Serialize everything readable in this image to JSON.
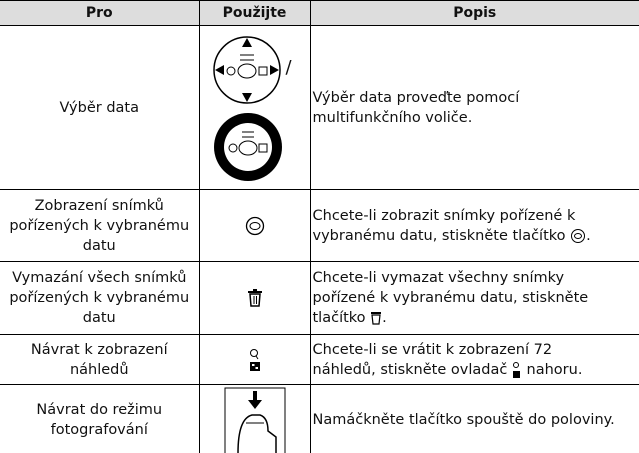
{
  "table": {
    "header": [
      "Pro",
      "Použijte",
      "Popis"
    ],
    "rows": [
      {
        "pro": "Výběr data",
        "separator": "/",
        "desc": [
          "Výběr data proveďte pomocí multifunkčního voliče."
        ]
      },
      {
        "pro": "Zobrazení snímků pořízených k vybranému datu",
        "desc": [
          "Chcete-li zobrazit snímky pořízené k vybranému datu, stiskněte tlačítko",
          "."
        ]
      },
      {
        "pro": "Vymazání všech snímků pořízených k vybranému datu",
        "desc": [
          "Chcete-li vymazat všechny snímky pořízené k vybranému datu, stiskněte tlačítko",
          "."
        ]
      },
      {
        "pro": "Návrat k zobrazení náhledů",
        "desc": [
          "Chcete-li se vrátit k zobrazení 72 náhledů, stiskněte ovladač",
          "nahoru."
        ]
      },
      {
        "pro": "Návrat do režimu fotografování",
        "desc": [
          "Namáčkněte tlačítko spouště do poloviny."
        ]
      }
    ]
  }
}
